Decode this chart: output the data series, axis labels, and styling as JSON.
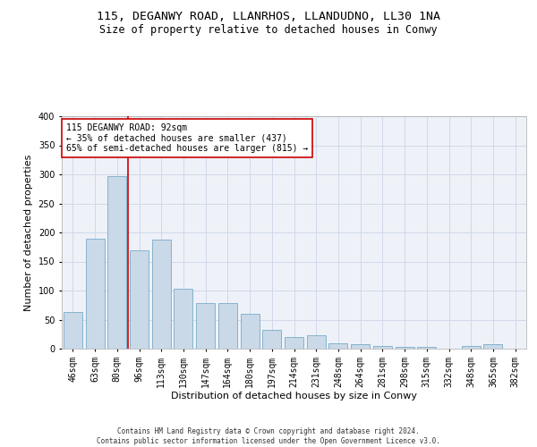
{
  "title_line1": "115, DEGANWY ROAD, LLANRHOS, LLANDUDNO, LL30 1NA",
  "title_line2": "Size of property relative to detached houses in Conwy",
  "xlabel": "Distribution of detached houses by size in Conwy",
  "ylabel": "Number of detached properties",
  "categories": [
    "46sqm",
    "63sqm",
    "80sqm",
    "96sqm",
    "113sqm",
    "130sqm",
    "147sqm",
    "164sqm",
    "180sqm",
    "197sqm",
    "214sqm",
    "231sqm",
    "248sqm",
    "264sqm",
    "281sqm",
    "298sqm",
    "315sqm",
    "332sqm",
    "348sqm",
    "365sqm",
    "382sqm"
  ],
  "values": [
    63,
    190,
    297,
    170,
    188,
    103,
    78,
    78,
    60,
    33,
    20,
    23,
    9,
    7,
    4,
    3,
    3,
    0,
    4,
    7,
    0
  ],
  "bar_color": "#c9d9e8",
  "bar_edge_color": "#7aaac8",
  "marker_color": "#cc0000",
  "annotation_text": "115 DEGANWY ROAD: 92sqm\n← 35% of detached houses are smaller (437)\n65% of semi-detached houses are larger (815) →",
  "annotation_box_color": "#ffffff",
  "annotation_border_color": "#cc0000",
  "grid_color": "#d0d8e8",
  "background_color": "#eef2f8",
  "footer": "Contains HM Land Registry data © Crown copyright and database right 2024.\nContains public sector information licensed under the Open Government Licence v3.0.",
  "ylim": [
    0,
    400
  ],
  "yticks": [
    0,
    50,
    100,
    150,
    200,
    250,
    300,
    350,
    400
  ],
  "title_fontsize": 9.5,
  "subtitle_fontsize": 8.5,
  "tick_fontsize": 7,
  "label_fontsize": 8,
  "annotation_fontsize": 7,
  "footer_fontsize": 5.5,
  "red_line_x": 2.5
}
